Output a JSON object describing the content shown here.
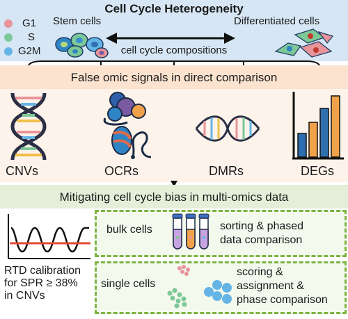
{
  "header": {
    "title": "Cell Cycle Heterogeneity",
    "legend": [
      {
        "label": "G1",
        "color": "#e8949a"
      },
      {
        "label": "S",
        "color": "#7dc897"
      },
      {
        "label": "G2M",
        "color": "#64b4e6"
      }
    ],
    "stem_label": "Stem cells",
    "diff_label": "Differentiated cells",
    "arrow_label": "cell cycle compositions"
  },
  "middle": {
    "banner": "False omic signals in direct comparison",
    "items": [
      {
        "label": "CNVs",
        "icon": "dna-helix-icon"
      },
      {
        "label": "OCRs",
        "icon": "chromatin-icon"
      },
      {
        "label": "DMRs",
        "icon": "methylation-icon"
      },
      {
        "label": "DEGs",
        "icon": "bar-chart-icon"
      }
    ]
  },
  "bottom": {
    "banner": "Mitigating cell cycle bias in multi-omics data",
    "rtd_lines": [
      "RTD calibration",
      "for SPR ≥ 38%",
      "in CNVs"
    ],
    "bulk": {
      "label": "bulk cells",
      "method_lines": [
        "sorting & phased",
        "data comparison"
      ]
    },
    "single": {
      "label": "single cells",
      "method_lines": [
        "scoring &",
        "assignment &",
        "phase comparison"
      ]
    }
  },
  "colors": {
    "top_band": "#d7e6f5",
    "mid_band": "#fbe3cf",
    "bottom_band": "#e3efd9",
    "dash_green": "#7cb342"
  }
}
